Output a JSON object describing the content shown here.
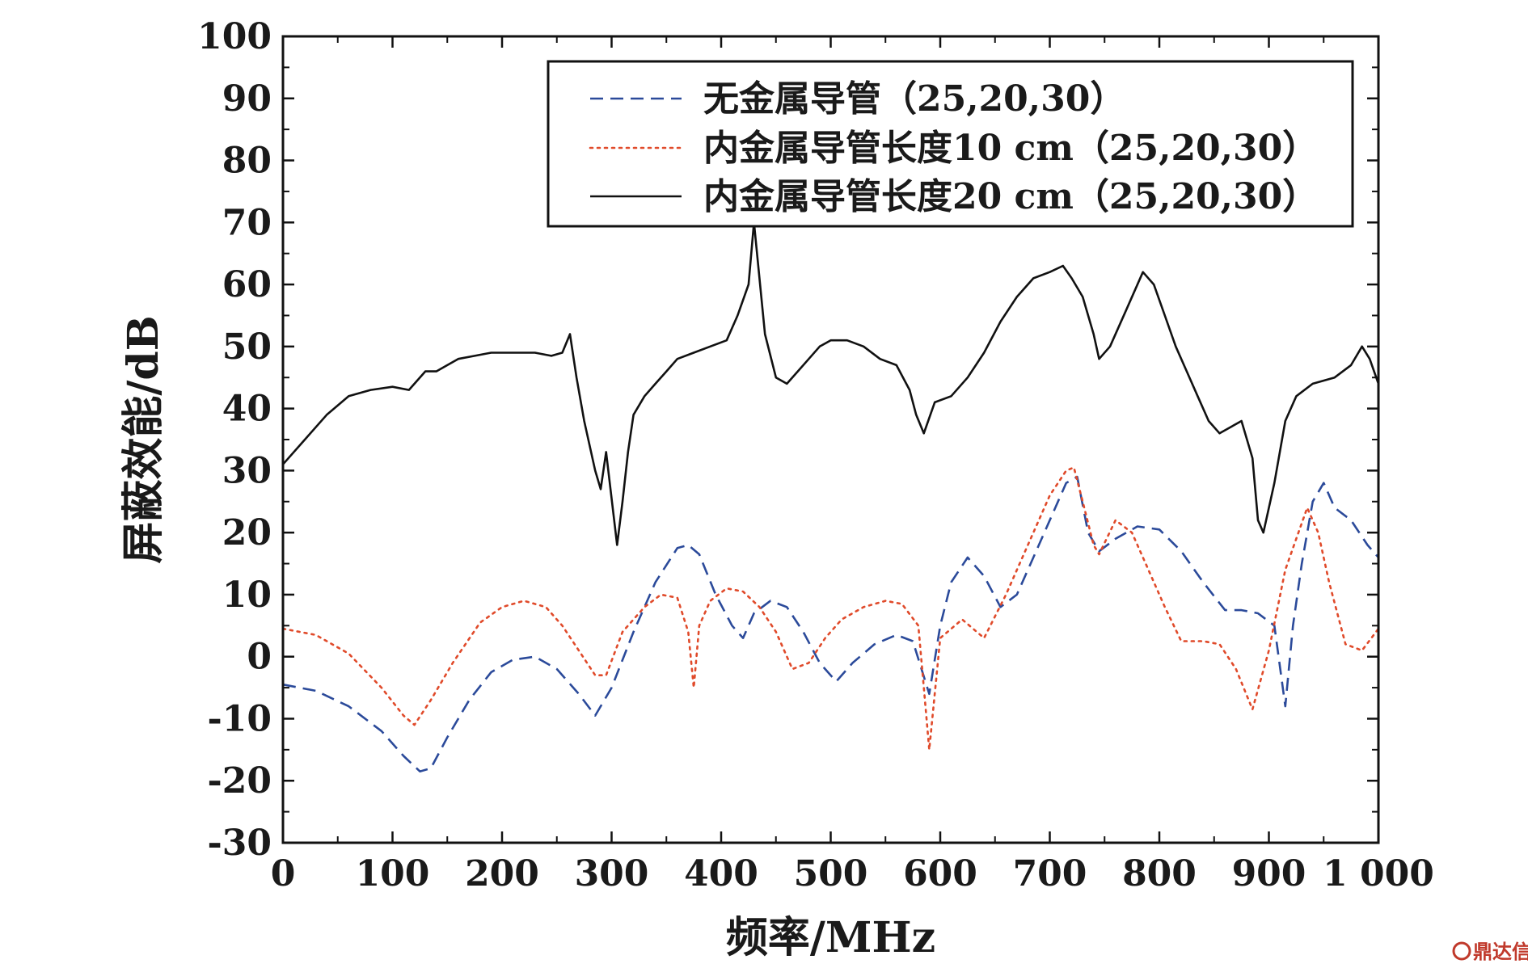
{
  "chart_data": {
    "type": "line",
    "xlabel": "频率/MHz",
    "ylabel": "屏蔽效能/dB",
    "xlim": [
      0,
      1000
    ],
    "ylim": [
      -30,
      100
    ],
    "x_ticks": [
      0,
      100,
      200,
      300,
      400,
      500,
      600,
      700,
      800,
      900,
      1000
    ],
    "x_tick_labels": [
      "0",
      "100",
      "200",
      "300",
      "400",
      "500",
      "600",
      "700",
      "800",
      "900",
      "1 000"
    ],
    "y_ticks": [
      -30,
      -20,
      -10,
      0,
      10,
      20,
      30,
      40,
      50,
      60,
      70,
      80,
      90,
      100
    ],
    "y_tick_labels": [
      "-30",
      "-20",
      "-10",
      "0",
      "10",
      "20",
      "30",
      "40",
      "50",
      "60",
      "70",
      "80",
      "90",
      "100"
    ],
    "grid": false,
    "legend_position": "top-right",
    "series": [
      {
        "name": "无金属导管（25,20,30）",
        "color": "#2b4a9a",
        "dash": "dashed",
        "x": [
          0,
          30,
          60,
          90,
          110,
          125,
          135,
          150,
          170,
          190,
          210,
          230,
          250,
          270,
          285,
          300,
          320,
          340,
          360,
          370,
          380,
          395,
          410,
          420,
          430,
          445,
          460,
          475,
          490,
          505,
          520,
          540,
          560,
          575,
          590,
          600,
          610,
          625,
          640,
          655,
          670,
          685,
          700,
          715,
          725,
          735,
          745,
          760,
          780,
          800,
          820,
          840,
          860,
          875,
          890,
          905,
          915,
          922,
          930,
          940,
          950,
          960,
          975,
          990,
          1000
        ],
        "y": [
          -4.5,
          -5.5,
          -8,
          -12,
          -16,
          -18.5,
          -18,
          -13,
          -7,
          -2.5,
          -0.5,
          0,
          -2,
          -6,
          -9.5,
          -5,
          4,
          12,
          17.5,
          18,
          16.5,
          10,
          5,
          3,
          7,
          9,
          8,
          4,
          -1,
          -4,
          -1,
          2,
          3.5,
          2.5,
          -6,
          5,
          12,
          16,
          13,
          8,
          10,
          16,
          22,
          28,
          29,
          20,
          17,
          19,
          21,
          20.5,
          17,
          12,
          7.5,
          7.5,
          7,
          5,
          -8,
          5,
          15,
          25,
          28,
          24,
          22,
          18,
          16
        ]
      },
      {
        "name": "内金属导管长度10 cm（25,20,30）",
        "color": "#e04a2a",
        "dash": "dotted",
        "x": [
          0,
          30,
          60,
          90,
          110,
          120,
          135,
          155,
          180,
          200,
          220,
          240,
          255,
          270,
          285,
          295,
          310,
          330,
          345,
          360,
          370,
          375,
          380,
          390,
          405,
          420,
          435,
          450,
          465,
          480,
          495,
          510,
          530,
          550,
          565,
          580,
          585,
          590,
          600,
          620,
          640,
          660,
          680,
          700,
          715,
          722,
          730,
          740,
          745,
          760,
          775,
          790,
          805,
          820,
          840,
          855,
          870,
          885,
          900,
          915,
          935,
          945,
          955,
          970,
          985,
          1000
        ],
        "y": [
          4.5,
          3.5,
          0.5,
          -5,
          -9.5,
          -11,
          -7,
          -1,
          5.5,
          8,
          9,
          8,
          5,
          1,
          -3,
          -3,
          4,
          8,
          10,
          9.5,
          4,
          -5,
          5,
          9,
          11,
          10.5,
          8,
          4,
          -2,
          -1,
          3,
          6,
          8,
          9,
          8.5,
          5,
          -5,
          -15,
          3,
          6,
          3,
          10,
          18,
          26,
          30,
          30.5,
          25,
          18,
          16.5,
          22,
          20,
          14,
          8,
          2.5,
          2.5,
          2,
          -2,
          -8.5,
          1,
          14,
          24,
          20,
          12,
          2,
          1,
          4.5
        ]
      },
      {
        "name": "内金属导管长度20 cm（25,20,30）",
        "color": "#111111",
        "dash": "solid",
        "x": [
          0,
          20,
          40,
          60,
          80,
          100,
          115,
          130,
          140,
          150,
          160,
          175,
          190,
          210,
          230,
          245,
          255,
          262,
          268,
          275,
          285,
          290,
          295,
          305,
          310,
          315,
          320,
          330,
          340,
          350,
          360,
          375,
          390,
          405,
          415,
          425,
          430,
          440,
          450,
          460,
          470,
          480,
          490,
          500,
          515,
          530,
          545,
          560,
          572,
          578,
          585,
          595,
          610,
          625,
          640,
          655,
          670,
          685,
          700,
          712,
          720,
          730,
          740,
          745,
          755,
          770,
          785,
          795,
          805,
          815,
          825,
          835,
          845,
          855,
          865,
          875,
          885,
          890,
          895,
          905,
          915,
          925,
          940,
          960,
          975,
          985,
          992,
          1000
        ],
        "y": [
          31,
          35,
          39,
          42,
          43,
          43.5,
          43,
          46,
          46,
          47,
          48,
          48.5,
          49,
          49,
          49,
          48.5,
          49,
          52,
          45,
          38,
          30,
          27,
          33,
          18,
          25,
          33,
          39,
          42,
          44,
          46,
          48,
          49,
          50,
          51,
          55,
          60,
          70,
          52,
          45,
          44,
          46,
          48,
          50,
          51,
          51,
          50,
          48,
          47,
          43,
          39,
          36,
          41,
          42,
          45,
          49,
          54,
          58,
          61,
          62,
          63,
          61,
          58,
          52,
          48,
          50,
          56,
          62,
          60,
          55,
          50,
          46,
          42,
          38,
          36,
          37,
          38,
          32,
          22,
          20,
          28,
          38,
          42,
          44,
          45,
          47,
          50,
          48,
          44
        ]
      }
    ]
  },
  "watermark": {
    "text": "鼎达信",
    "color": "#c0392b"
  }
}
